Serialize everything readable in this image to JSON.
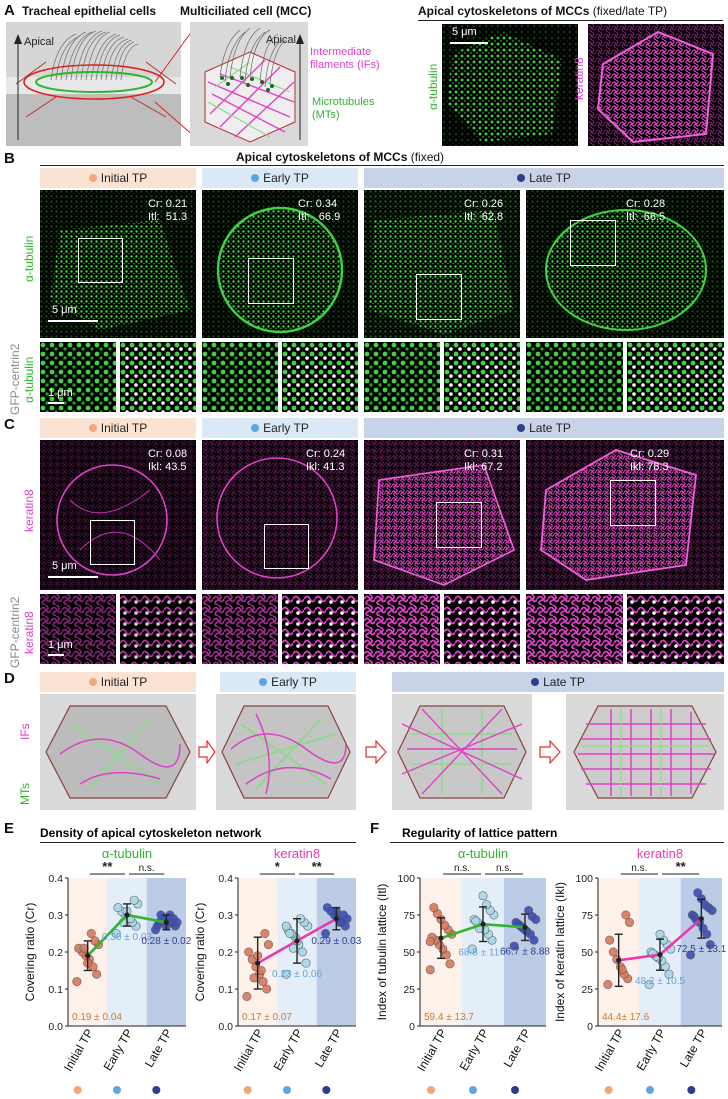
{
  "figure": {
    "panel_labels": [
      "A",
      "B",
      "C",
      "D",
      "E",
      "F"
    ],
    "A": {
      "schematic1_title": "Tracheal epithelial cells",
      "schematic2_title": "Multiciliated cell (MCC)",
      "apical_label_left": "Apical",
      "apical_label_right": "Apical",
      "if_label": "Intermediate filaments (IFs)",
      "mt_label": "Microtubules (MTs)",
      "right_title_bold": "Apical cytoskeletons of MCCs",
      "right_title_normal": " (fixed/late TP)",
      "scalebar": "5 μm",
      "tubulin_label": "α-tubulin",
      "keratin_label": "keratin8"
    },
    "B": {
      "title_bold": "Apical cytoskeletons of MCCs",
      "title_normal": " (fixed)",
      "stages": [
        {
          "name": "Initial  TP",
          "color": "#f2a77a"
        },
        {
          "name": "Early TP",
          "color": "#5fa6e0"
        },
        {
          "name": "Late TP",
          "color": "#2b3e8c"
        }
      ],
      "annotations": [
        "Cr: 0.21\nItl:  51.3",
        "Cr: 0.34\nItl:   66.9",
        "Cr: 0.26\nItl:  62.8",
        "Cr: 0.28\nItl:  66.5"
      ],
      "row_label": "α-tubulin",
      "row2_label_top": "GFP-centrin2",
      "row2_label_bottom": "α-tubulin",
      "scalebar_main": "5 μm",
      "scalebar_zoom": "1 μm"
    },
    "C": {
      "stages": [
        {
          "name": "Initial  TP",
          "color": "#f2a77a"
        },
        {
          "name": "Early TP",
          "color": "#5fa6e0"
        },
        {
          "name": "Late TP",
          "color": "#2b3e8c"
        }
      ],
      "annotations": [
        "Cr: 0.08\nIkl: 43.5",
        "Cr: 0.24\nIkl: 41.3",
        "Cr: 0.31\nIkl: 67.2",
        "Cr: 0.29\nIkl: 78.3"
      ],
      "row_label": "keratin8",
      "row2_label_top": "GFP-centrin2",
      "row2_label_bottom": "keratin8",
      "scalebar_main": "5 μm",
      "scalebar_zoom": "1 μm"
    },
    "D": {
      "stages": [
        {
          "name": "Initial  TP",
          "color": "#f2a77a"
        },
        {
          "name": "Early TP",
          "color": "#5fa6e0"
        },
        {
          "name": "Late TP",
          "color": "#2b3e8c"
        }
      ],
      "if_label": "IFs",
      "mt_label": "MTs"
    },
    "E": {
      "title": "Density of apical cytoskeleton network",
      "colors": {
        "initial": "#f2a77a",
        "early": "#5fa6e0",
        "late": "#2b3e8c",
        "tubulin_line": "#2fb52f",
        "keratin_line": "#e83ab0"
      }
    },
    "F": {
      "title": "Regularity of lattice pattern"
    }
  },
  "chart_data": [
    {
      "type": "scatter",
      "panel": "E",
      "title": "α-tubulin",
      "ylabel": "Covering ratio (Cr)",
      "categories": [
        "Initial TP",
        "Early TP",
        "Late TP"
      ],
      "ylim": [
        0,
        0.4
      ],
      "yticks": [
        "0.0",
        "0.1",
        "0.2",
        "0.3",
        "0.4"
      ],
      "means": [
        0.19,
        0.3,
        0.28
      ],
      "sds": [
        0.04,
        0.03,
        0.02
      ],
      "mean_labels": [
        "0.19 ± 0.04",
        "0.30 ± 0.03",
        "0.28  ±  0.02"
      ],
      "significance": [
        "**",
        "n.s."
      ],
      "points": [
        [
          0.12,
          0.14,
          0.16,
          0.18,
          0.19,
          0.2,
          0.21,
          0.22,
          0.23,
          0.25,
          0.17,
          0.21
        ],
        [
          0.25,
          0.27,
          0.28,
          0.29,
          0.3,
          0.31,
          0.32,
          0.33,
          0.34,
          0.29,
          0.31,
          0.28
        ],
        [
          0.26,
          0.27,
          0.28,
          0.28,
          0.29,
          0.3,
          0.27,
          0.28,
          0.29,
          0.3,
          0.27,
          0.29,
          0.28
        ]
      ]
    },
    {
      "type": "scatter",
      "panel": "E",
      "title": "keratin8",
      "ylabel": "Covering ratio (Cr)",
      "categories": [
        "Initial TP",
        "Early TP",
        "Late TP"
      ],
      "ylim": [
        0,
        0.4
      ],
      "yticks": [
        "0.0",
        "0.1",
        "0.2",
        "0.3",
        "0.4"
      ],
      "means": [
        0.17,
        0.23,
        0.29
      ],
      "sds": [
        0.07,
        0.06,
        0.03
      ],
      "mean_labels": [
        "0.17 ± 0.07",
        "0.23 ± 0.06",
        "0.29 ± 0.03"
      ],
      "significance": [
        "*",
        "**"
      ],
      "points": [
        [
          0.08,
          0.1,
          0.12,
          0.14,
          0.16,
          0.18,
          0.2,
          0.22,
          0.25,
          0.15,
          0.19,
          0.13
        ],
        [
          0.14,
          0.17,
          0.2,
          0.22,
          0.24,
          0.25,
          0.26,
          0.27,
          0.28,
          0.29,
          0.23,
          0.21,
          0.25,
          0.27
        ],
        [
          0.25,
          0.27,
          0.28,
          0.29,
          0.3,
          0.31,
          0.32,
          0.29,
          0.3,
          0.28,
          0.31
        ]
      ]
    },
    {
      "type": "scatter",
      "panel": "F",
      "title": "α-tubulin",
      "ylabel": "Index of tubulin lattice (Itl)",
      "categories": [
        "Initial TP",
        "Early TP",
        "Late TP"
      ],
      "ylim": [
        0,
        100
      ],
      "yticks": [
        "0",
        "25",
        "50",
        "75",
        "100"
      ],
      "means": [
        59.4,
        68.8,
        66.7
      ],
      "sds": [
        13.7,
        11.7,
        8.88
      ],
      "mean_labels": [
        "59.4 ± 13.7",
        "68.8 ± 11.7",
        "66.7 ± 8.88"
      ],
      "significance": [
        "n.s.",
        "n.s."
      ],
      "points": [
        [
          38,
          42,
          48,
          52,
          55,
          58,
          60,
          62,
          65,
          68,
          72,
          76,
          80,
          57
        ],
        [
          52,
          58,
          62,
          65,
          68,
          70,
          72,
          75,
          78,
          82,
          88,
          66,
          71
        ],
        [
          54,
          58,
          62,
          64,
          66,
          68,
          70,
          72,
          74,
          78,
          65,
          67,
          69
        ]
      ]
    },
    {
      "type": "scatter",
      "panel": "F",
      "title": "keratin8",
      "ylabel": "Index of keratin lattice (Ikl)",
      "categories": [
        "Initial TP",
        "Early TP",
        "Late TP"
      ],
      "ylim": [
        0,
        100
      ],
      "yticks": [
        "0",
        "25",
        "50",
        "75",
        "100"
      ],
      "means": [
        44.4,
        48.2,
        72.5
      ],
      "sds": [
        17.6,
        10.5,
        13.1
      ],
      "mean_labels": [
        "44.4± 17.6",
        "48.2 ± 10.5",
        "72.5 ± 13.1"
      ],
      "significance": [
        "n.s.",
        "**"
      ],
      "points": [
        [
          28,
          32,
          35,
          40,
          45,
          50,
          58,
          70,
          75,
          38
        ],
        [
          28,
          35,
          40,
          44,
          46,
          48,
          50,
          52,
          55,
          58,
          62,
          47,
          49
        ],
        [
          48,
          55,
          62,
          66,
          70,
          72,
          75,
          78,
          80,
          82,
          86,
          90,
          74
        ]
      ]
    }
  ]
}
